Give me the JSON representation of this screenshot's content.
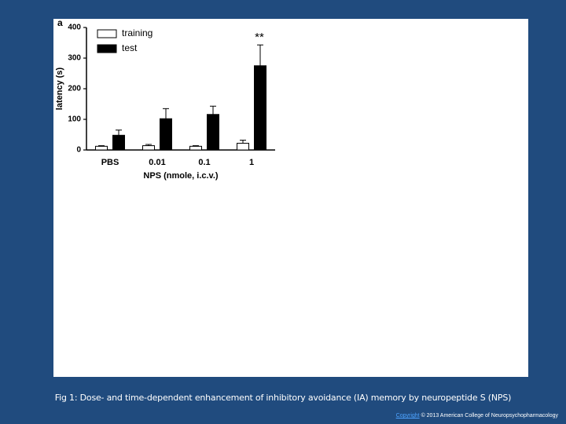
{
  "chart_data": {
    "type": "bar",
    "panel_label": "a",
    "annotation": "**",
    "y_label": "latency (s)",
    "x_label": "NPS (nmole, i.c.v.)",
    "categories": [
      "PBS",
      "0.01",
      "0.1",
      "1"
    ],
    "series": [
      {
        "name": "training",
        "color": "#ffffff",
        "values": [
          12,
          14,
          12,
          22
        ],
        "errors": [
          2,
          4,
          2,
          10
        ]
      },
      {
        "name": "test",
        "color": "#000000",
        "values": [
          48,
          102,
          116,
          275
        ],
        "errors": [
          17,
          33,
          27,
          68
        ]
      }
    ],
    "ylim": [
      0,
      400
    ],
    "yticks": [
      0,
      100,
      200,
      300,
      400
    ],
    "grid": false,
    "legend": "upper left"
  },
  "slide": {
    "caption": "Fig 1: Dose- and time-dependent enhancement of inhibitory avoidance (IA) memory by neuropeptide S (NPS)",
    "copyright_link": "Copyright",
    "copyright_text": "© 2013 American College of Neuropsychopharmacology"
  }
}
